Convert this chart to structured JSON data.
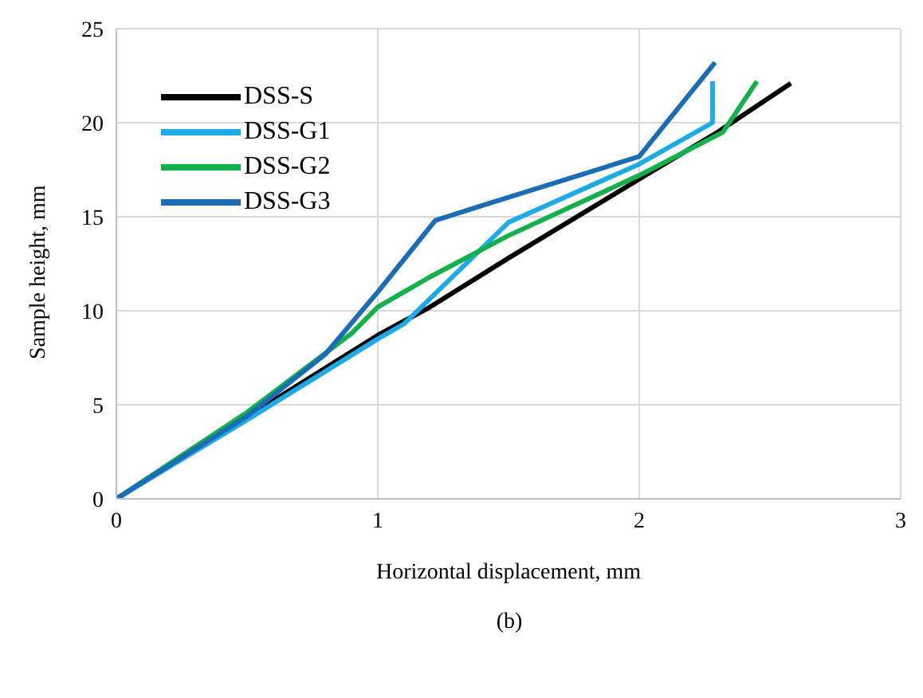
{
  "chart_data": {
    "type": "line",
    "xlabel": "Horizontal displacement, mm",
    "ylabel": "Sample height, mm",
    "annotations": [
      "(b)"
    ],
    "xlim": [
      0,
      3
    ],
    "xticks": [
      0,
      1,
      2,
      3
    ],
    "ylim": [
      0,
      25
    ],
    "yticks": [
      0,
      5,
      10,
      15,
      20,
      25
    ],
    "grid": true,
    "legend": "top left",
    "marker": "none",
    "line_style": "solid",
    "series": [
      {
        "name": "DSS-S",
        "color": "#000000",
        "x": [
          0,
          1,
          1.2,
          1.5,
          2,
          2.3,
          2.58
        ],
        "values": [
          0,
          8.7,
          10.2,
          12.8,
          17,
          19.5,
          22.1
        ]
      },
      {
        "name": "DSS-G1",
        "color": "#1eaae6",
        "x": [
          0,
          0.5,
          1,
          1.1,
          1.3,
          1.5,
          2,
          2.28,
          2.28
        ],
        "values": [
          0,
          4.2,
          8.5,
          9.3,
          12,
          14.7,
          17.8,
          20,
          22.2
        ]
      },
      {
        "name": "DSS-G2",
        "color": "#13b04b",
        "x": [
          0,
          0.5,
          0.9,
          1,
          1.2,
          1.5,
          2,
          2.32,
          2.45
        ],
        "values": [
          0,
          4.6,
          8.8,
          10.2,
          11.8,
          14,
          17.2,
          19.5,
          22.2
        ]
      },
      {
        "name": "DSS-G3",
        "color": "#1a6db5",
        "x": [
          0,
          0.5,
          0.8,
          1,
          1.22,
          1.4,
          2,
          2.29
        ],
        "values": [
          0,
          4.4,
          7.7,
          11,
          14.8,
          15.6,
          18.2,
          23.2
        ]
      }
    ]
  }
}
